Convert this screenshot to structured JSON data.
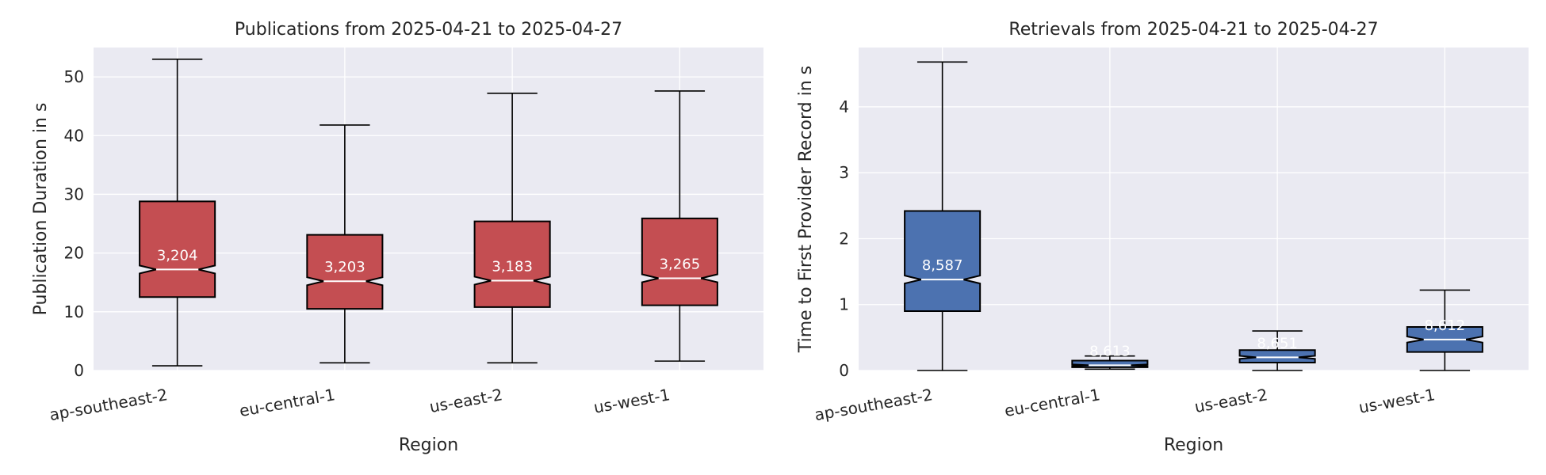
{
  "chart_data": [
    {
      "type": "box",
      "title": "Publications from 2025-04-21 to 2025-04-27",
      "xlabel": "Region",
      "ylabel": "Publication Duration in s",
      "ylim": [
        0,
        55
      ],
      "yticks": [
        0,
        10,
        20,
        30,
        40,
        50
      ],
      "color": "#c44e52",
      "categories": [
        "ap-southeast-2",
        "eu-central-1",
        "us-east-2",
        "us-west-1"
      ],
      "boxes": [
        {
          "whislo": 0.8,
          "q1": 12.5,
          "med": 17.2,
          "q3": 28.8,
          "whishi": 53.0,
          "count": "3,204"
        },
        {
          "whislo": 1.3,
          "q1": 10.5,
          "med": 15.2,
          "q3": 23.1,
          "whishi": 41.8,
          "count": "3,203"
        },
        {
          "whislo": 1.3,
          "q1": 10.8,
          "med": 15.3,
          "q3": 25.4,
          "whishi": 47.2,
          "count": "3,183"
        },
        {
          "whislo": 1.6,
          "q1": 11.1,
          "med": 15.7,
          "q3": 25.9,
          "whishi": 47.6,
          "count": "3,265"
        }
      ]
    },
    {
      "type": "box",
      "title": "Retrievals from 2025-04-21 to 2025-04-27",
      "xlabel": "Region",
      "ylabel": "Time to First Provider Record in s",
      "ylim": [
        0,
        4.9
      ],
      "yticks": [
        0,
        1,
        2,
        3,
        4
      ],
      "color": "#4c72b0",
      "categories": [
        "ap-southeast-2",
        "eu-central-1",
        "us-east-2",
        "us-west-1"
      ],
      "boxes": [
        {
          "whislo": 0.0,
          "q1": 0.9,
          "med": 1.38,
          "q3": 2.42,
          "whishi": 4.68,
          "count": "8,587"
        },
        {
          "whislo": 0.02,
          "q1": 0.05,
          "med": 0.08,
          "q3": 0.15,
          "whishi": 0.22,
          "count": "8,613"
        },
        {
          "whislo": 0.0,
          "q1": 0.12,
          "med": 0.2,
          "q3": 0.31,
          "whishi": 0.6,
          "count": "8,651"
        },
        {
          "whislo": 0.0,
          "q1": 0.28,
          "med": 0.47,
          "q3": 0.66,
          "whishi": 1.22,
          "count": "8,612"
        }
      ]
    }
  ]
}
